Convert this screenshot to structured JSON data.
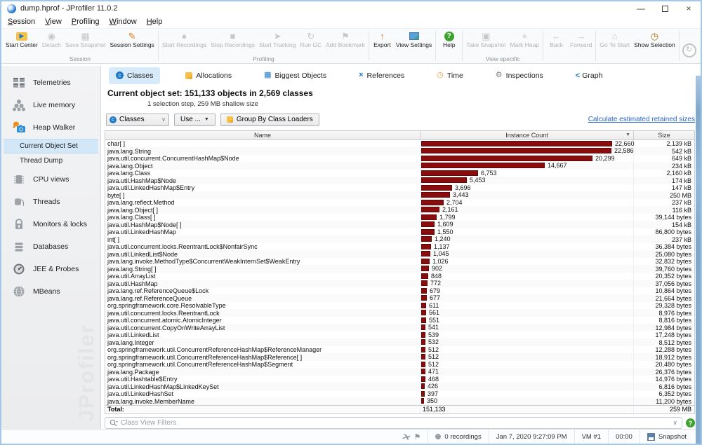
{
  "window": {
    "title": "dump.hprof - JProfiler 11.0.2",
    "controls": {
      "minimize": "—",
      "maximize": "",
      "close": "×"
    }
  },
  "menu": {
    "items": [
      "Session",
      "View",
      "Profiling",
      "Window",
      "Help"
    ]
  },
  "toolbar": {
    "groups": [
      {
        "label": "Session",
        "buttons": [
          {
            "label": "Start Center",
            "enabled": true
          },
          {
            "label": "Detach",
            "enabled": false
          },
          {
            "label": "Save Snapshot",
            "enabled": false
          },
          {
            "label": "Session Settings",
            "enabled": true
          }
        ]
      },
      {
        "label": "Profiling",
        "buttons": [
          {
            "label": "Start Recordings",
            "enabled": false
          },
          {
            "label": "Stop Recordings",
            "enabled": false
          },
          {
            "label": "Start Tracking",
            "enabled": false
          },
          {
            "label": "Run GC",
            "enabled": false
          },
          {
            "label": "Add Bookmark",
            "enabled": false
          }
        ]
      },
      {
        "label": "",
        "buttons": [
          {
            "label": "Export",
            "enabled": true
          },
          {
            "label": "View Settings",
            "enabled": true
          }
        ]
      },
      {
        "label": "",
        "buttons": [
          {
            "label": "Help",
            "enabled": true
          }
        ]
      },
      {
        "label": "View specific",
        "buttons": [
          {
            "label": "Take Snapshot",
            "enabled": false
          },
          {
            "label": "Mark Heap",
            "enabled": false
          }
        ]
      },
      {
        "label": "",
        "buttons": [
          {
            "label": "Back",
            "enabled": false
          },
          {
            "label": "Forward",
            "enabled": false
          }
        ]
      },
      {
        "label": "",
        "buttons": [
          {
            "label": "Go To Start",
            "enabled": false
          },
          {
            "label": "Show Selection",
            "enabled": true
          }
        ]
      }
    ]
  },
  "sidebar": {
    "items": [
      {
        "label": "Telemetries"
      },
      {
        "label": "Live memory"
      },
      {
        "label": "Heap Walker"
      },
      {
        "label": "Current Object Set",
        "sub": true,
        "selected": true
      },
      {
        "label": "Thread Dump",
        "sub": true
      },
      {
        "label": "CPU views"
      },
      {
        "label": "Threads"
      },
      {
        "label": "Monitors & locks"
      },
      {
        "label": "Databases"
      },
      {
        "label": "JEE & Probes"
      },
      {
        "label": "MBeans"
      }
    ],
    "watermark": "JProfiler"
  },
  "tabs": [
    {
      "label": "Classes",
      "selected": true
    },
    {
      "label": "Allocations"
    },
    {
      "label": "Biggest Objects"
    },
    {
      "label": "References"
    },
    {
      "label": "Time"
    },
    {
      "label": "Inspections"
    },
    {
      "label": "Graph"
    }
  ],
  "summary": {
    "line1_label": "Current object set:",
    "line1_value": "151,133 objects in 2,569 classes",
    "line2": "1 selection step, 259 MB shallow size"
  },
  "controls": {
    "view_selector": "Classes",
    "use_button": "Use ...",
    "group_button": "Group By Class Loaders",
    "retained_link": "Calculate estimated retained sizes"
  },
  "table": {
    "columns": [
      "Name",
      "Instance Count",
      "Size"
    ],
    "max_count": 22660,
    "rows": [
      [
        "char[ ]",
        "22,660",
        "2,139 kB"
      ],
      [
        "java.lang.String",
        "22,586",
        "542 kB"
      ],
      [
        "java.util.concurrent.ConcurrentHashMap$Node",
        "20,299",
        "649 kB"
      ],
      [
        "java.lang.Object",
        "14,667",
        "234 kB"
      ],
      [
        "java.lang.Class",
        "6,753",
        "2,160 kB"
      ],
      [
        "java.util.HashMap$Node",
        "5,453",
        "174 kB"
      ],
      [
        "java.util.LinkedHashMap$Entry",
        "3,696",
        "147 kB"
      ],
      [
        "byte[ ]",
        "3,443",
        "250 MB"
      ],
      [
        "java.lang.reflect.Method",
        "2,704",
        "237 kB"
      ],
      [
        "java.lang.Object[ ]",
        "2,161",
        "116 kB"
      ],
      [
        "java.lang.Class[ ]",
        "1,799",
        "39,144 bytes"
      ],
      [
        "java.util.HashMap$Node[ ]",
        "1,609",
        "154 kB"
      ],
      [
        "java.util.LinkedHashMap",
        "1,550",
        "86,800 bytes"
      ],
      [
        "int[ ]",
        "1,240",
        "237 kB"
      ],
      [
        "java.util.concurrent.locks.ReentrantLock$NonfairSync",
        "1,137",
        "36,384 bytes"
      ],
      [
        "java.util.LinkedList$Node",
        "1,045",
        "25,080 bytes"
      ],
      [
        "java.lang.invoke.MethodType$ConcurrentWeakInternSet$WeakEntry",
        "1,026",
        "32,832 bytes"
      ],
      [
        "java.lang.String[ ]",
        "902",
        "39,760 bytes"
      ],
      [
        "java.util.ArrayList",
        "848",
        "20,352 bytes"
      ],
      [
        "java.util.HashMap",
        "772",
        "37,056 bytes"
      ],
      [
        "java.lang.ref.ReferenceQueue$Lock",
        "679",
        "10,864 bytes"
      ],
      [
        "java.lang.ref.ReferenceQueue",
        "677",
        "21,664 bytes"
      ],
      [
        "org.springframework.core.ResolvableType",
        "611",
        "29,328 bytes"
      ],
      [
        "java.util.concurrent.locks.ReentrantLock",
        "561",
        "8,976 bytes"
      ],
      [
        "java.util.concurrent.atomic.AtomicInteger",
        "551",
        "8,816 bytes"
      ],
      [
        "java.util.concurrent.CopyOnWriteArrayList",
        "541",
        "12,984 bytes"
      ],
      [
        "java.util.LinkedList",
        "539",
        "17,248 bytes"
      ],
      [
        "java.lang.Integer",
        "532",
        "8,512 bytes"
      ],
      [
        "org.springframework.util.ConcurrentReferenceHashMap$ReferenceManager",
        "512",
        "12,288 bytes"
      ],
      [
        "org.springframework.util.ConcurrentReferenceHashMap$Reference[ ]",
        "512",
        "18,912 bytes"
      ],
      [
        "org.springframework.util.ConcurrentReferenceHashMap$Segment",
        "512",
        "20,480 bytes"
      ],
      [
        "java.lang.Package",
        "471",
        "26,376 bytes"
      ],
      [
        "java.util.Hashtable$Entry",
        "468",
        "14,976 bytes"
      ],
      [
        "java.util.LinkedHashMap$LinkedKeySet",
        "426",
        "6,816 bytes"
      ],
      [
        "java.util.LinkedHashSet",
        "397",
        "6,352 bytes"
      ],
      [
        "java.lang.invoke.MemberName",
        "350",
        "11,200 bytes"
      ]
    ],
    "total": {
      "label": "Total:",
      "count": "151,133",
      "size": "259 MB"
    },
    "bar_color": "#8a0c0c"
  },
  "filter": {
    "placeholder": "Class View Filters"
  },
  "statusbar": {
    "recordings": "0 recordings",
    "timestamp": "Jan 7, 2020 9:27:09 PM",
    "vm": "VM #1",
    "elapsed": "00:00",
    "snapshot": "Snapshot"
  }
}
